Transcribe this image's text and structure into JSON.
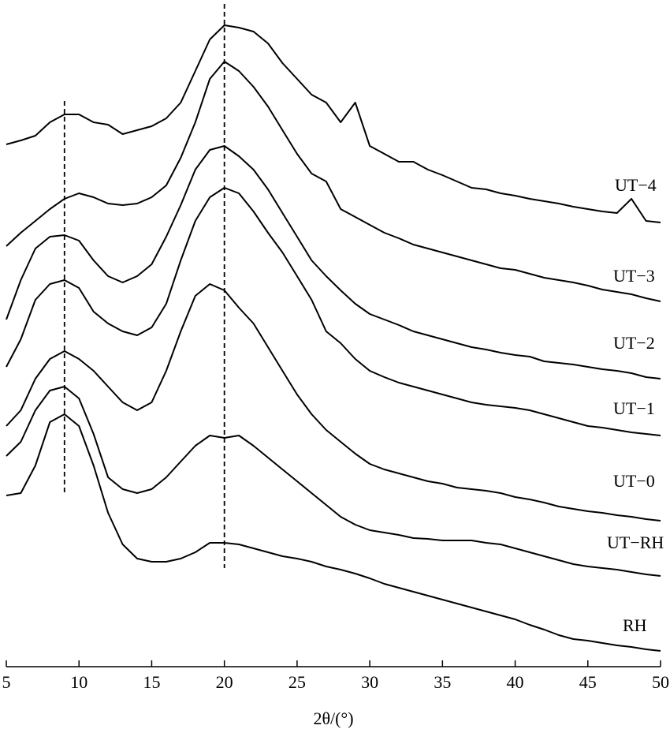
{
  "chart_data": {
    "type": "line",
    "x_label": "2θ/(°)",
    "x": [
      5,
      6,
      7,
      8,
      9,
      10,
      11,
      12,
      13,
      14,
      15,
      16,
      17,
      18,
      19,
      20,
      21,
      22,
      23,
      24,
      25,
      26,
      27,
      28,
      29,
      30,
      31,
      32,
      33,
      34,
      35,
      36,
      37,
      38,
      39,
      40,
      41,
      42,
      43,
      44,
      45,
      46,
      47,
      48,
      49,
      50
    ],
    "xlim": [
      5,
      50
    ],
    "xticks": [
      5,
      10,
      15,
      20,
      25,
      30,
      35,
      40,
      45,
      50
    ],
    "ylim": [
      0,
      840
    ],
    "vlines": [
      9,
      20
    ],
    "series": [
      {
        "name": "UT−4",
        "color": "#000000",
        "values": [
          662,
          667,
          673,
          690,
          700,
          700,
          690,
          687,
          675,
          680,
          685,
          695,
          715,
          755,
          795,
          813,
          810,
          805,
          790,
          765,
          745,
          725,
          715,
          690,
          715,
          660,
          650,
          640,
          640,
          630,
          623,
          615,
          607,
          605,
          600,
          597,
          593,
          590,
          587,
          583,
          580,
          577,
          575,
          593,
          565,
          563
        ]
      },
      {
        "name": "UT−3",
        "color": "#000000",
        "values": [
          533,
          550,
          565,
          580,
          593,
          600,
          595,
          587,
          585,
          587,
          595,
          610,
          645,
          690,
          745,
          767,
          755,
          735,
          710,
          680,
          650,
          625,
          615,
          580,
          570,
          560,
          550,
          543,
          535,
          530,
          525,
          520,
          515,
          510,
          505,
          503,
          498,
          493,
          490,
          487,
          483,
          478,
          475,
          472,
          467,
          463
        ]
      },
      {
        "name": "UT−2",
        "color": "#000000",
        "values": [
          440,
          490,
          530,
          545,
          547,
          540,
          515,
          495,
          487,
          495,
          510,
          545,
          585,
          630,
          655,
          660,
          647,
          630,
          605,
          575,
          545,
          515,
          495,
          477,
          460,
          447,
          440,
          433,
          425,
          420,
          415,
          410,
          405,
          402,
          398,
          395,
          393,
          387,
          385,
          383,
          380,
          377,
          375,
          372,
          367,
          365
        ]
      },
      {
        "name": "UT−1",
        "color": "#000000",
        "values": [
          380,
          415,
          465,
          485,
          490,
          480,
          450,
          435,
          425,
          420,
          430,
          460,
          515,
          565,
          595,
          607,
          600,
          577,
          550,
          525,
          495,
          465,
          425,
          410,
          390,
          375,
          367,
          360,
          355,
          350,
          345,
          340,
          335,
          332,
          330,
          328,
          325,
          320,
          315,
          310,
          305,
          303,
          300,
          297,
          295,
          293
        ]
      },
      {
        "name": "UT−0",
        "color": "#000000",
        "values": [
          305,
          325,
          365,
          390,
          400,
          390,
          375,
          355,
          335,
          325,
          335,
          375,
          425,
          470,
          485,
          477,
          455,
          435,
          405,
          375,
          345,
          320,
          300,
          285,
          270,
          257,
          250,
          245,
          240,
          235,
          232,
          227,
          225,
          223,
          220,
          215,
          212,
          208,
          203,
          200,
          197,
          195,
          192,
          190,
          187,
          185
        ]
      },
      {
        "name": "UT−RH",
        "color": "#000000",
        "values": [
          267,
          285,
          325,
          350,
          355,
          340,
          295,
          240,
          225,
          220,
          225,
          240,
          260,
          280,
          293,
          290,
          293,
          280,
          265,
          250,
          235,
          220,
          205,
          190,
          180,
          173,
          170,
          167,
          163,
          162,
          160,
          160,
          160,
          157,
          155,
          150,
          145,
          140,
          135,
          130,
          127,
          125,
          123,
          120,
          117,
          115
        ]
      },
      {
        "name": "RH",
        "color": "#000000",
        "values": [
          217,
          220,
          255,
          310,
          320,
          305,
          255,
          195,
          155,
          137,
          133,
          133,
          137,
          145,
          157,
          157,
          155,
          150,
          145,
          140,
          137,
          133,
          127,
          123,
          118,
          112,
          105,
          100,
          95,
          90,
          85,
          80,
          75,
          70,
          65,
          60,
          53,
          47,
          40,
          35,
          33,
          30,
          27,
          25,
          22,
          20
        ]
      }
    ]
  }
}
